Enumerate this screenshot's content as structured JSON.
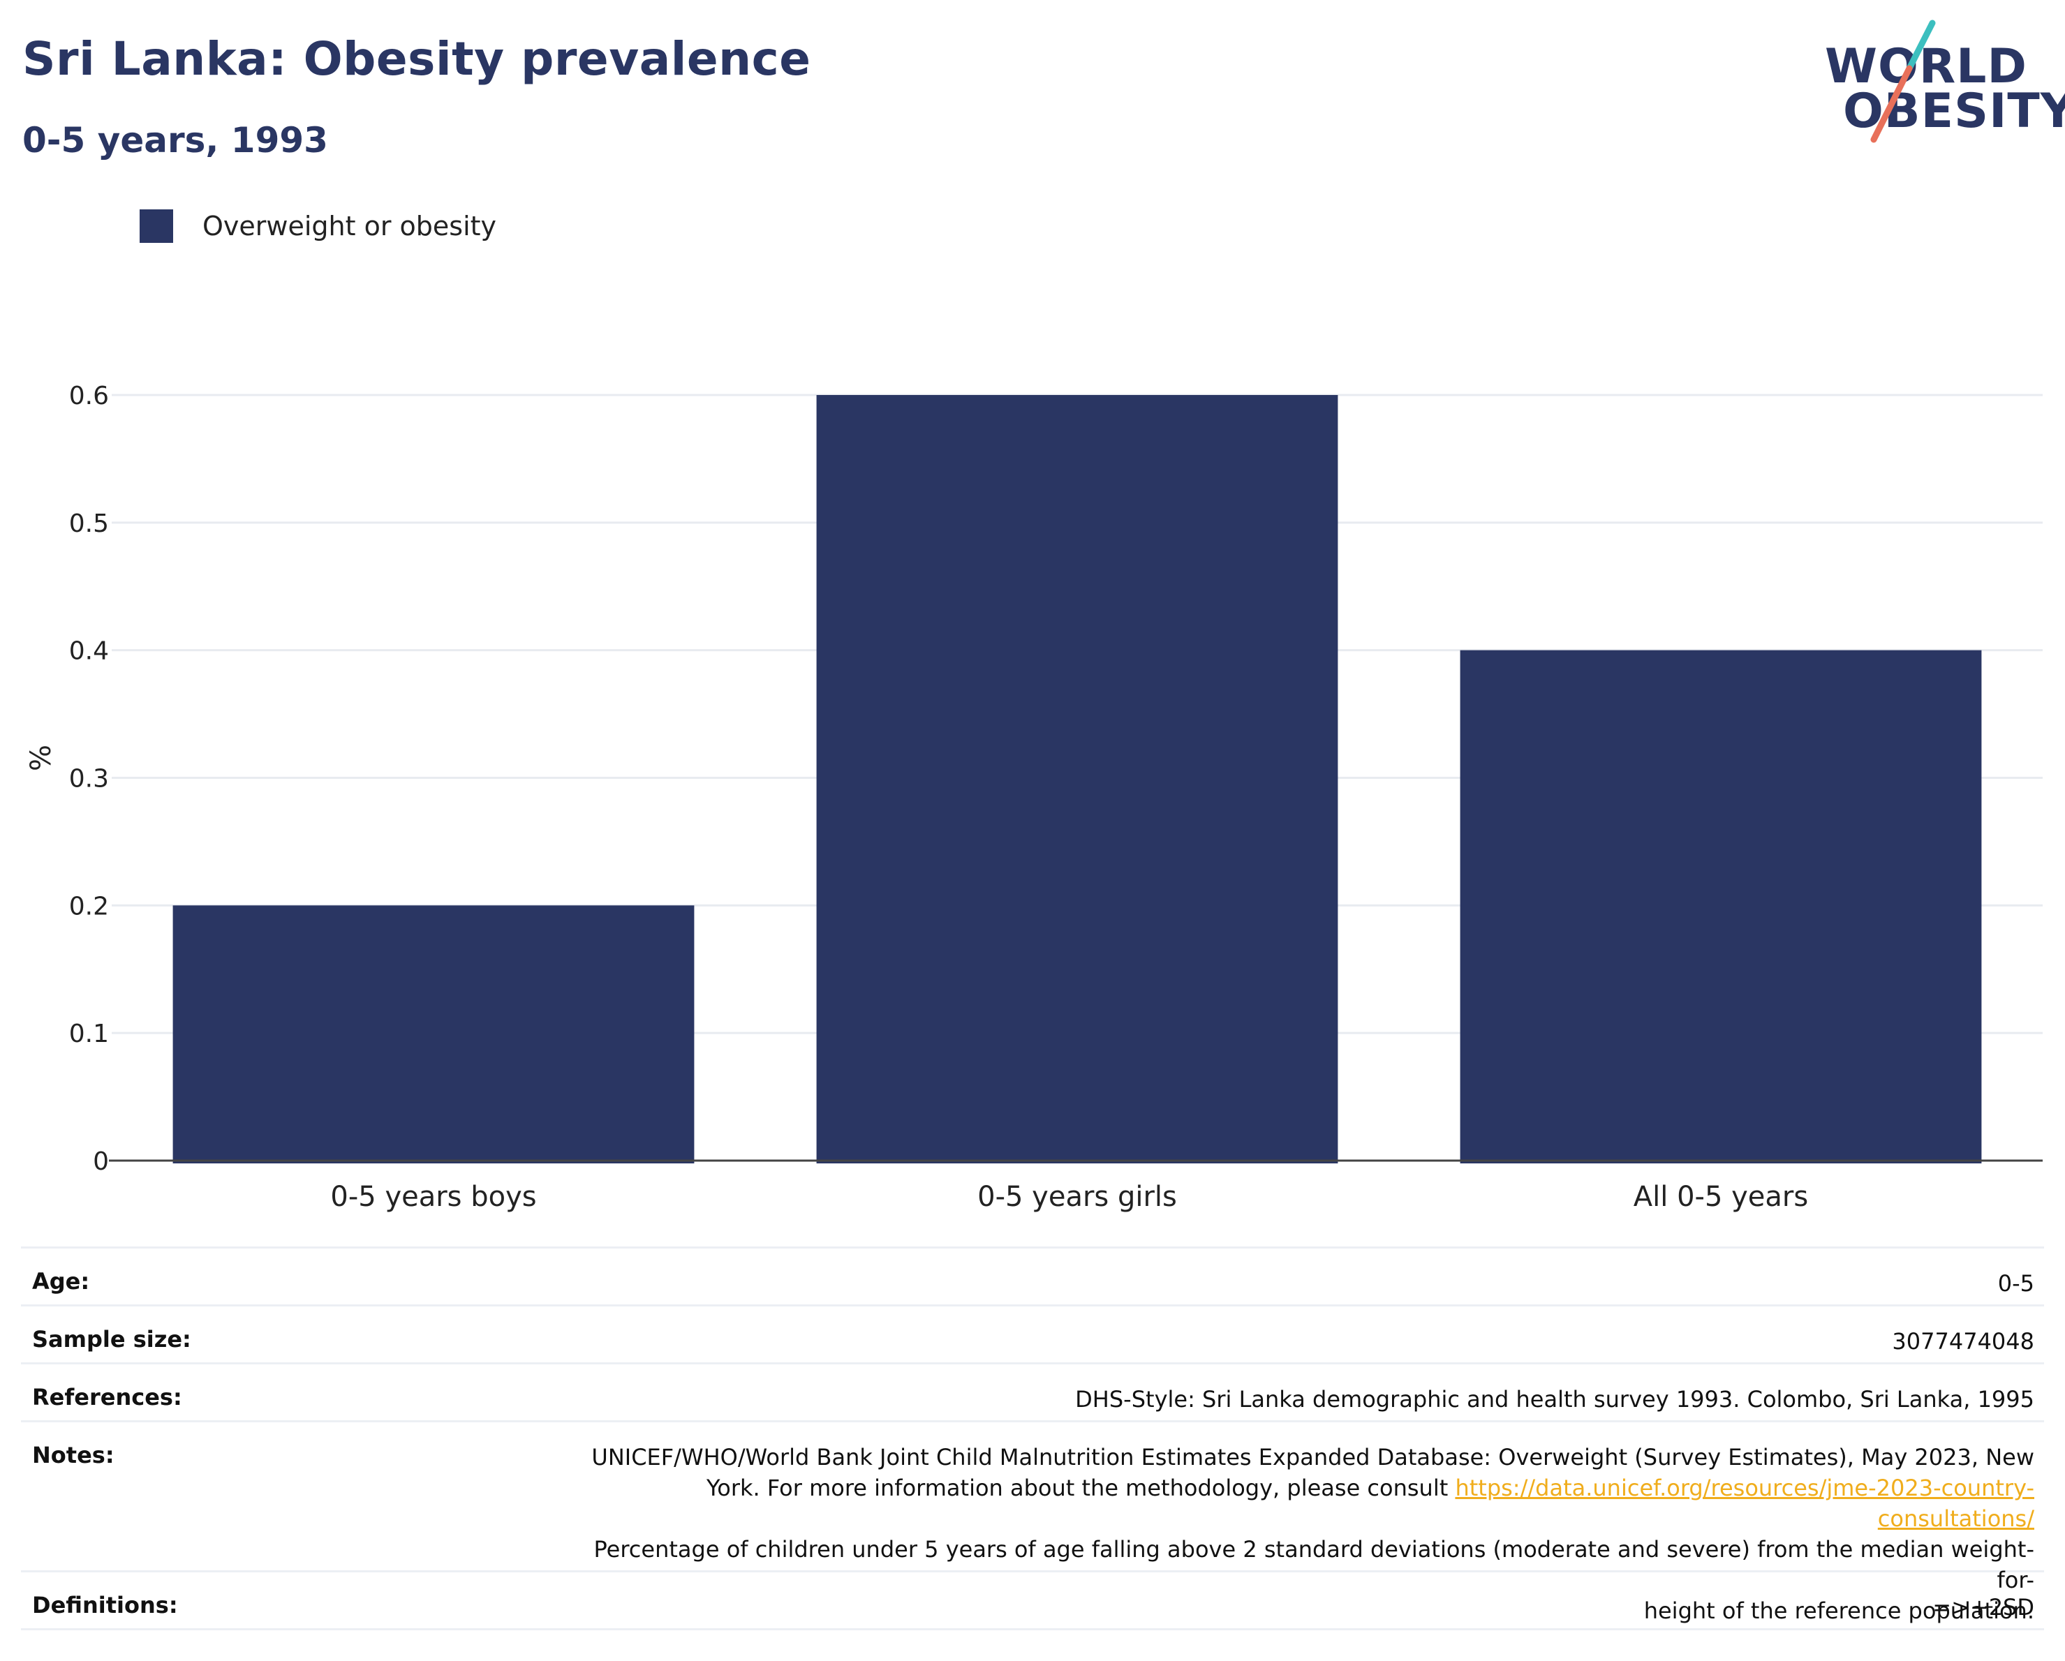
{
  "header": {
    "title": "Sri Lanka: Obesity prevalence",
    "subtitle": "0-5 years, 1993"
  },
  "logo": {
    "line1": "WORLD",
    "line2": "OBESITY",
    "colors": {
      "navy": "#2a3663",
      "teal": "#3cbfbf",
      "coral": "#e8705a"
    }
  },
  "legend": {
    "label": "Overweight or obesity",
    "color": "#2a3663"
  },
  "chart_data": {
    "type": "bar",
    "categories": [
      "0-5 years boys",
      "0-5 years girls",
      "All 0-5 years"
    ],
    "series": [
      {
        "name": "Overweight or obesity",
        "values": [
          0.2,
          0.6,
          0.4
        ],
        "color": "#2a3663"
      }
    ],
    "ylabel": "%",
    "ylim": [
      0,
      0.6
    ],
    "yticks": [
      "0",
      "0.1",
      "0.2",
      "0.3",
      "0.4",
      "0.5",
      "0.6"
    ],
    "grid": true,
    "legend_position": "top-left"
  },
  "info": {
    "age": {
      "label": "Age:",
      "value": "0-5"
    },
    "sample_size": {
      "label": "Sample size:",
      "value": "3077474048"
    },
    "references": {
      "label": "References:",
      "value": "DHS-Style: Sri Lanka demographic and health survey 1993. Colombo, Sri Lanka, 1995"
    },
    "notes": {
      "label": "Notes:",
      "line1": "UNICEF/WHO/World Bank Joint Child Malnutrition Estimates Expanded Database: Overweight (Survey Estimates), May 2023, New",
      "line2_prefix": "York. For more information about the methodology, please consult ",
      "link": "https://data.unicef.org/resources/jme-2023-country-consultations/",
      "line3": "Percentage of children under 5 years of age falling above 2 standard deviations (moderate and severe) from the median weight-for-",
      "line4": "height of the reference population."
    },
    "definitions": {
      "label": "Definitions:",
      "value": "=>+2SD"
    }
  }
}
